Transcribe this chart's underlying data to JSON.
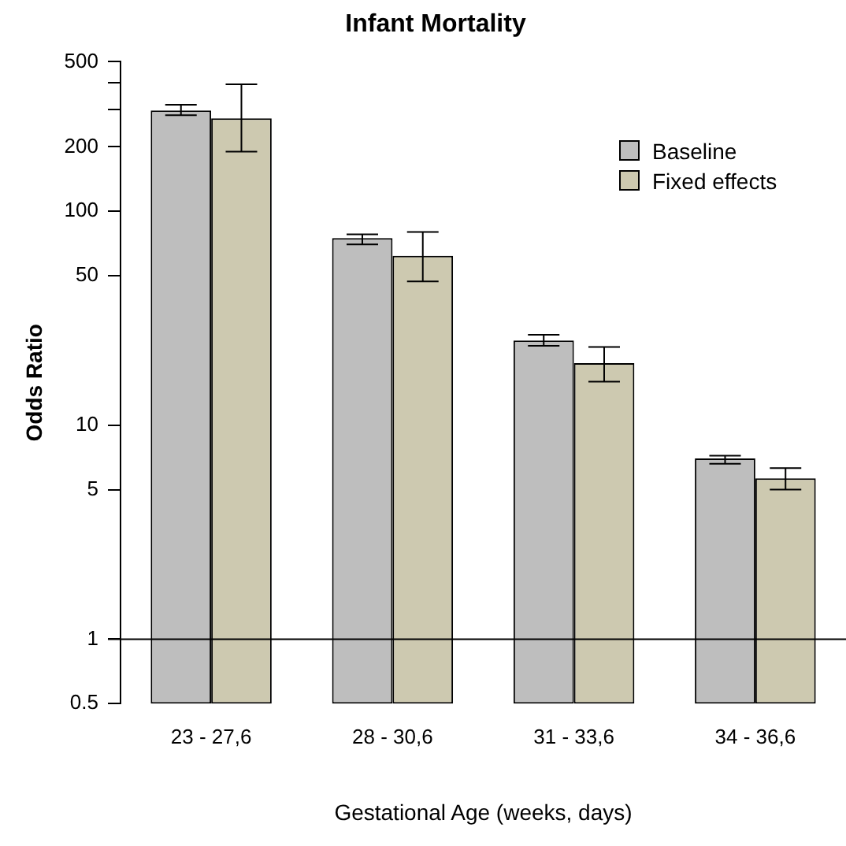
{
  "chart_data": {
    "type": "bar",
    "title": "Infant Mortality",
    "xlabel": "Gestational Age (weeks, days)",
    "ylabel": "Odds Ratio",
    "categories": [
      "23 - 27,6",
      "28 - 30,6",
      "31 - 33,6",
      "34 - 36,6"
    ],
    "series": [
      {
        "name": "Baseline",
        "color": "#bebebe",
        "values": [
          296,
          75,
          24.9,
          7.0
        ],
        "errors": [
          [
            281,
            315
          ],
          [
            70,
            78
          ],
          [
            23.5,
            26.5
          ],
          [
            6.6,
            7.2
          ]
        ]
      },
      {
        "name": "Fixed effects",
        "color": "#cdc9b0",
        "values": [
          272,
          62,
          19.5,
          5.65
        ],
        "errors": [
          [
            190,
            392
          ],
          [
            47,
            80
          ],
          [
            16,
            23.2
          ],
          [
            5.0,
            6.3
          ]
        ]
      }
    ],
    "log": "y",
    "ylim": [
      0.5,
      500
    ],
    "yticks": [
      0.5,
      1,
      5,
      10,
      50,
      100,
      200,
      {
        "value": 300,
        "label": null
      },
      {
        "value": 400,
        "label": null
      },
      500
    ],
    "ref_lines": [
      {
        "axis": "y",
        "value": 1,
        "color": "#000000"
      }
    ],
    "grid": false,
    "legend": "top right"
  }
}
